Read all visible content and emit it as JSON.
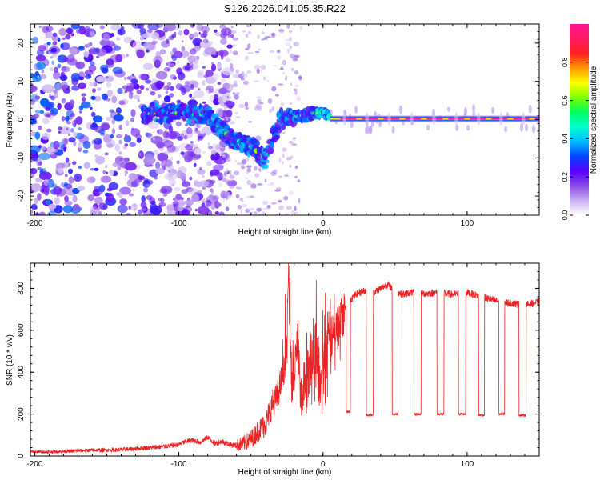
{
  "figure": {
    "title": "S126.2026.041.05.35.R22"
  },
  "chart_data": [
    {
      "type": "heatmap",
      "name": "spectrogram",
      "title": "S126.2026.041.05.35.R22",
      "xlabel": "Height of straight line (km)",
      "ylabel": "Frequency (Hz)",
      "xlim": [
        -203,
        150
      ],
      "ylim": [
        -25,
        25
      ],
      "xticks": [
        -200,
        -100,
        0,
        100
      ],
      "yticks": [
        -20,
        -10,
        0,
        10,
        20
      ],
      "colorbar": {
        "label": "Normalized spectral amplitude",
        "range": [
          0,
          1
        ],
        "ticks": [
          "0.0",
          "0.2",
          "0.4",
          "0.6",
          "0.8"
        ],
        "colors": [
          "#ffffff",
          "#c9b0f2",
          "#8a4be6",
          "#5a00ff",
          "#0044ff",
          "#00bbff",
          "#00ffd0",
          "#00ff60",
          "#7cff00",
          "#ffff00",
          "#ff9a00",
          "#ff2020",
          "#ff1a60",
          "#ff1493"
        ]
      },
      "ridge": [
        {
          "x": -125,
          "f": 1.5,
          "width": 2.8
        },
        {
          "x": -100,
          "f": 1.8,
          "width": 2.6
        },
        {
          "x": -80,
          "f": 1.0,
          "width": 2.8
        },
        {
          "x": -65,
          "f": -4.5,
          "width": 2.6
        },
        {
          "x": -48,
          "f": -7.5,
          "width": 2.8
        },
        {
          "x": -40,
          "f": -10.5,
          "width": 2.6
        },
        {
          "x": -30,
          "f": 0.0,
          "width": 3.2
        },
        {
          "x": -20,
          "f": 0.5,
          "width": 2.0
        },
        {
          "x": -10,
          "f": 1.5,
          "width": 1.8
        },
        {
          "x": 0,
          "f": 2.0,
          "width": 1.4
        },
        {
          "x": 10,
          "f": 0.3,
          "width": 0.8
        },
        {
          "x": 150,
          "f": 0.0,
          "width": 0.8
        }
      ]
    },
    {
      "type": "line",
      "name": "snr",
      "title": "",
      "xlabel": "Height of straight line (km)",
      "ylabel": "SNR (10 * v/v)",
      "xlim": [
        -203,
        150
      ],
      "ylim": [
        0,
        920
      ],
      "xticks": [
        -200,
        -100,
        0,
        100
      ],
      "yticks": [
        0,
        200,
        400,
        600,
        800
      ],
      "color": "#ee2222",
      "series": [
        {
          "name": "SNR",
          "x": [
            -203,
            -190,
            -180,
            -170,
            -160,
            -150,
            -140,
            -130,
            -120,
            -110,
            -100,
            -95,
            -90,
            -85,
            -80,
            -75,
            -70,
            -65,
            -60,
            -55,
            -50,
            -45,
            -40,
            -35,
            -32,
            -28,
            -25,
            -24,
            -22,
            -20,
            -18,
            -15,
            -12,
            -10,
            -8,
            -5,
            -2,
            0,
            3,
            6,
            9,
            12,
            15,
            18,
            21,
            25,
            30,
            35,
            40,
            45,
            50,
            55,
            60,
            70,
            80,
            90,
            100,
            110,
            120,
            130,
            140,
            150
          ],
          "values": [
            20,
            20,
            22,
            25,
            28,
            28,
            30,
            35,
            40,
            45,
            55,
            70,
            75,
            65,
            90,
            60,
            70,
            55,
            50,
            60,
            80,
            120,
            150,
            250,
            280,
            380,
            500,
            880,
            420,
            350,
            560,
            280,
            420,
            300,
            480,
            420,
            320,
            420,
            520,
            560,
            600,
            640,
            700,
            740,
            760,
            780,
            790,
            780,
            800,
            820,
            790,
            770,
            780,
            775,
            780,
            770,
            780,
            760,
            740,
            730,
            720,
            735
          ]
        }
      ],
      "dropouts": [
        {
          "start": 16,
          "end": 19,
          "level": 210
        },
        {
          "start": 30,
          "end": 35,
          "level": 195
        },
        {
          "start": 48,
          "end": 52,
          "level": 200
        },
        {
          "start": 63,
          "end": 68,
          "level": 200
        },
        {
          "start": 79,
          "end": 84,
          "level": 200
        },
        {
          "start": 94,
          "end": 99,
          "level": 200
        },
        {
          "start": 108,
          "end": 112,
          "level": 195
        },
        {
          "start": 122,
          "end": 126,
          "level": 200
        },
        {
          "start": 136,
          "end": 141,
          "level": 195
        }
      ]
    }
  ]
}
